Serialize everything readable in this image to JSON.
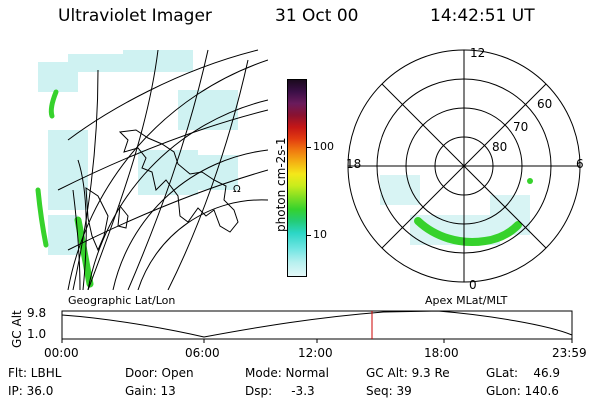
{
  "header": {
    "title": "Ultraviolet Imager",
    "date": "31 Oct 00",
    "time": "14:42:51 UT"
  },
  "colorbar": {
    "label": "photon cm-2s-1",
    "ticks": [
      "100",
      "10"
    ],
    "colors": [
      "#1b0a1e",
      "#3b0f47",
      "#6a1b5c",
      "#8a1230",
      "#c41616",
      "#e23b10",
      "#f07a10",
      "#f4b213",
      "#f4e81a",
      "#c8ec1c",
      "#7ede23",
      "#35d22e",
      "#23cc77",
      "#2bd6c6",
      "#6fe5e2",
      "#b7f0ef",
      "#e4f8f8"
    ]
  },
  "geo_map": {
    "label": "Geographic Lat/Lon",
    "symbol": "Ω"
  },
  "polar_plot": {
    "label": "Apex MLat/MLT",
    "mlt_labels": {
      "top": "12",
      "left": "18",
      "right": "6",
      "bottom": "0"
    },
    "lat_labels": [
      "60",
      "70",
      "80"
    ]
  },
  "timeline": {
    "ylabel": "GC Alt",
    "y_ticks": [
      "9.8",
      "1.0"
    ],
    "x_ticks": [
      "00:00",
      "06:00",
      "12:00",
      "18:00",
      "23:59"
    ],
    "current_time": "14:42:51",
    "marker_color": "#cc0000"
  },
  "info": {
    "flt": "Flt: LBHL",
    "ip": "IP: 36.0",
    "door": "Door: Open",
    "gain": "Gain: 13",
    "mode": "Mode: Normal",
    "dsp": "Dsp:     -3.3",
    "gc_alt": "GC Alt: 9.3 Re",
    "seq": "Seq: 39",
    "glat": "GLat:    46.9",
    "glon": "GLon: 140.6"
  }
}
